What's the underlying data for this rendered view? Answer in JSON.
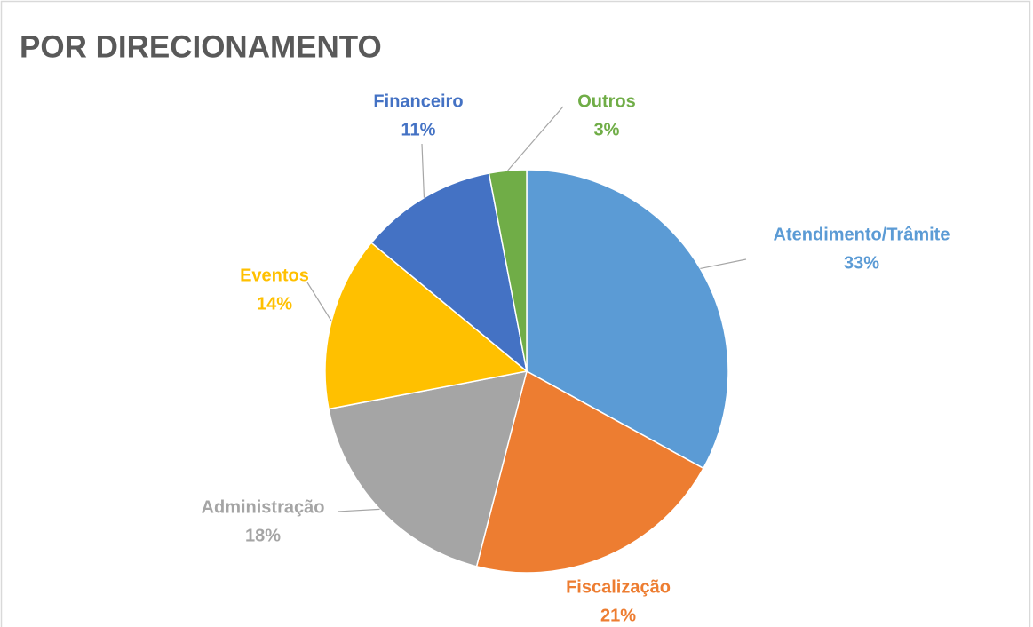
{
  "chart_data": {
    "type": "pie",
    "title": "POR DIRECIONAMENTO",
    "categories": [
      "Atendimento/Trâmite",
      "Fiscalização",
      "Administração",
      "Eventos",
      "Financeiro",
      "Outros"
    ],
    "values": [
      33,
      21,
      18,
      14,
      11,
      3
    ],
    "value_labels": [
      "33%",
      "21%",
      "18%",
      "14%",
      "11%",
      "3%"
    ],
    "colors": [
      "#5b9bd5",
      "#ed7d31",
      "#a5a5a5",
      "#ffc000",
      "#4472c4",
      "#70ad47"
    ]
  }
}
